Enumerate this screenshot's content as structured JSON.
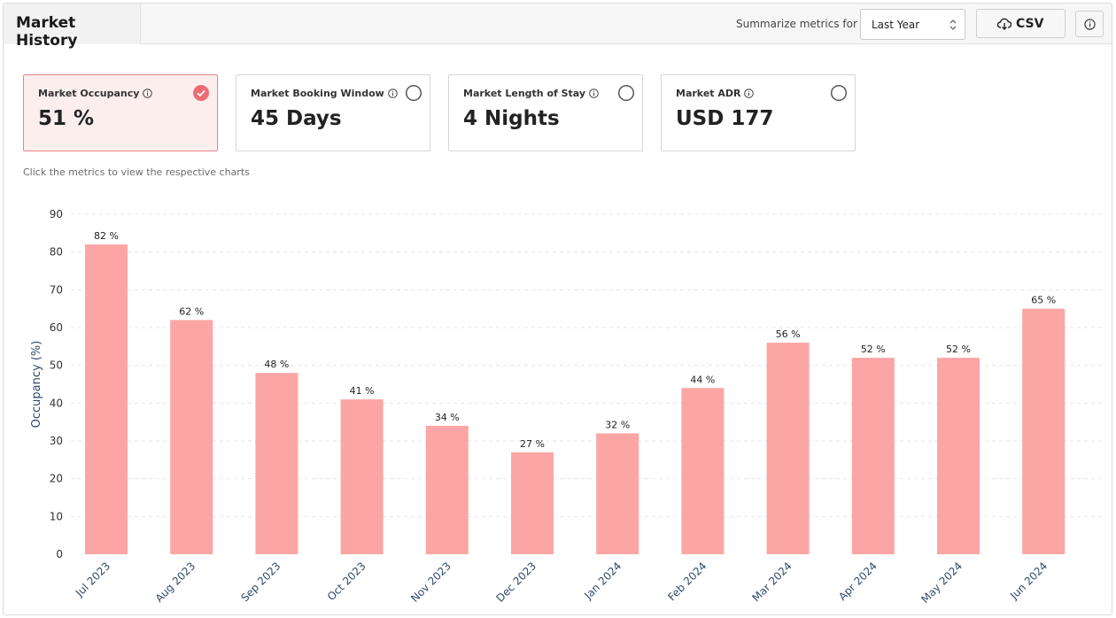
{
  "header": {
    "title": "Market History",
    "summarize_label": "Summarize metrics for",
    "period_value": "Last Year",
    "csv_label": "CSV"
  },
  "metrics": [
    {
      "label": "Market Occupancy",
      "value": "51 %",
      "selected": true
    },
    {
      "label": "Market Booking Window",
      "value": "45 Days",
      "selected": false
    },
    {
      "label": "Market Length of Stay",
      "value": "4 Nights",
      "selected": false
    },
    {
      "label": "Market ADR",
      "value": "USD 177",
      "selected": false
    }
  ],
  "hint": "Click the metrics to view the respective charts",
  "colors": {
    "bar": "#fca5a5",
    "accent": "#ef6b73",
    "selected_bg": "#fdeeee"
  },
  "chart_data": {
    "type": "bar",
    "categories": [
      "Jul 2023",
      "Aug 2023",
      "Sep 2023",
      "Oct 2023",
      "Nov 2023",
      "Dec 2023",
      "Jan 2024",
      "Feb 2024",
      "Mar 2024",
      "Apr 2024",
      "May 2024",
      "Jun 2024"
    ],
    "values": [
      82,
      62,
      48,
      41,
      34,
      27,
      32,
      44,
      56,
      52,
      52,
      65
    ],
    "data_labels": [
      "82 %",
      "62 %",
      "48 %",
      "41 %",
      "34 %",
      "27 %",
      "32 %",
      "44 %",
      "56 %",
      "52 %",
      "52 %",
      "65 %"
    ],
    "ylabel": "Occupancy (%)",
    "ylim": [
      0,
      90
    ],
    "yticks": [
      "0",
      "10",
      "20",
      "30",
      "40",
      "50",
      "60",
      "70",
      "80",
      "90"
    ],
    "grid": true,
    "legend": "none"
  }
}
